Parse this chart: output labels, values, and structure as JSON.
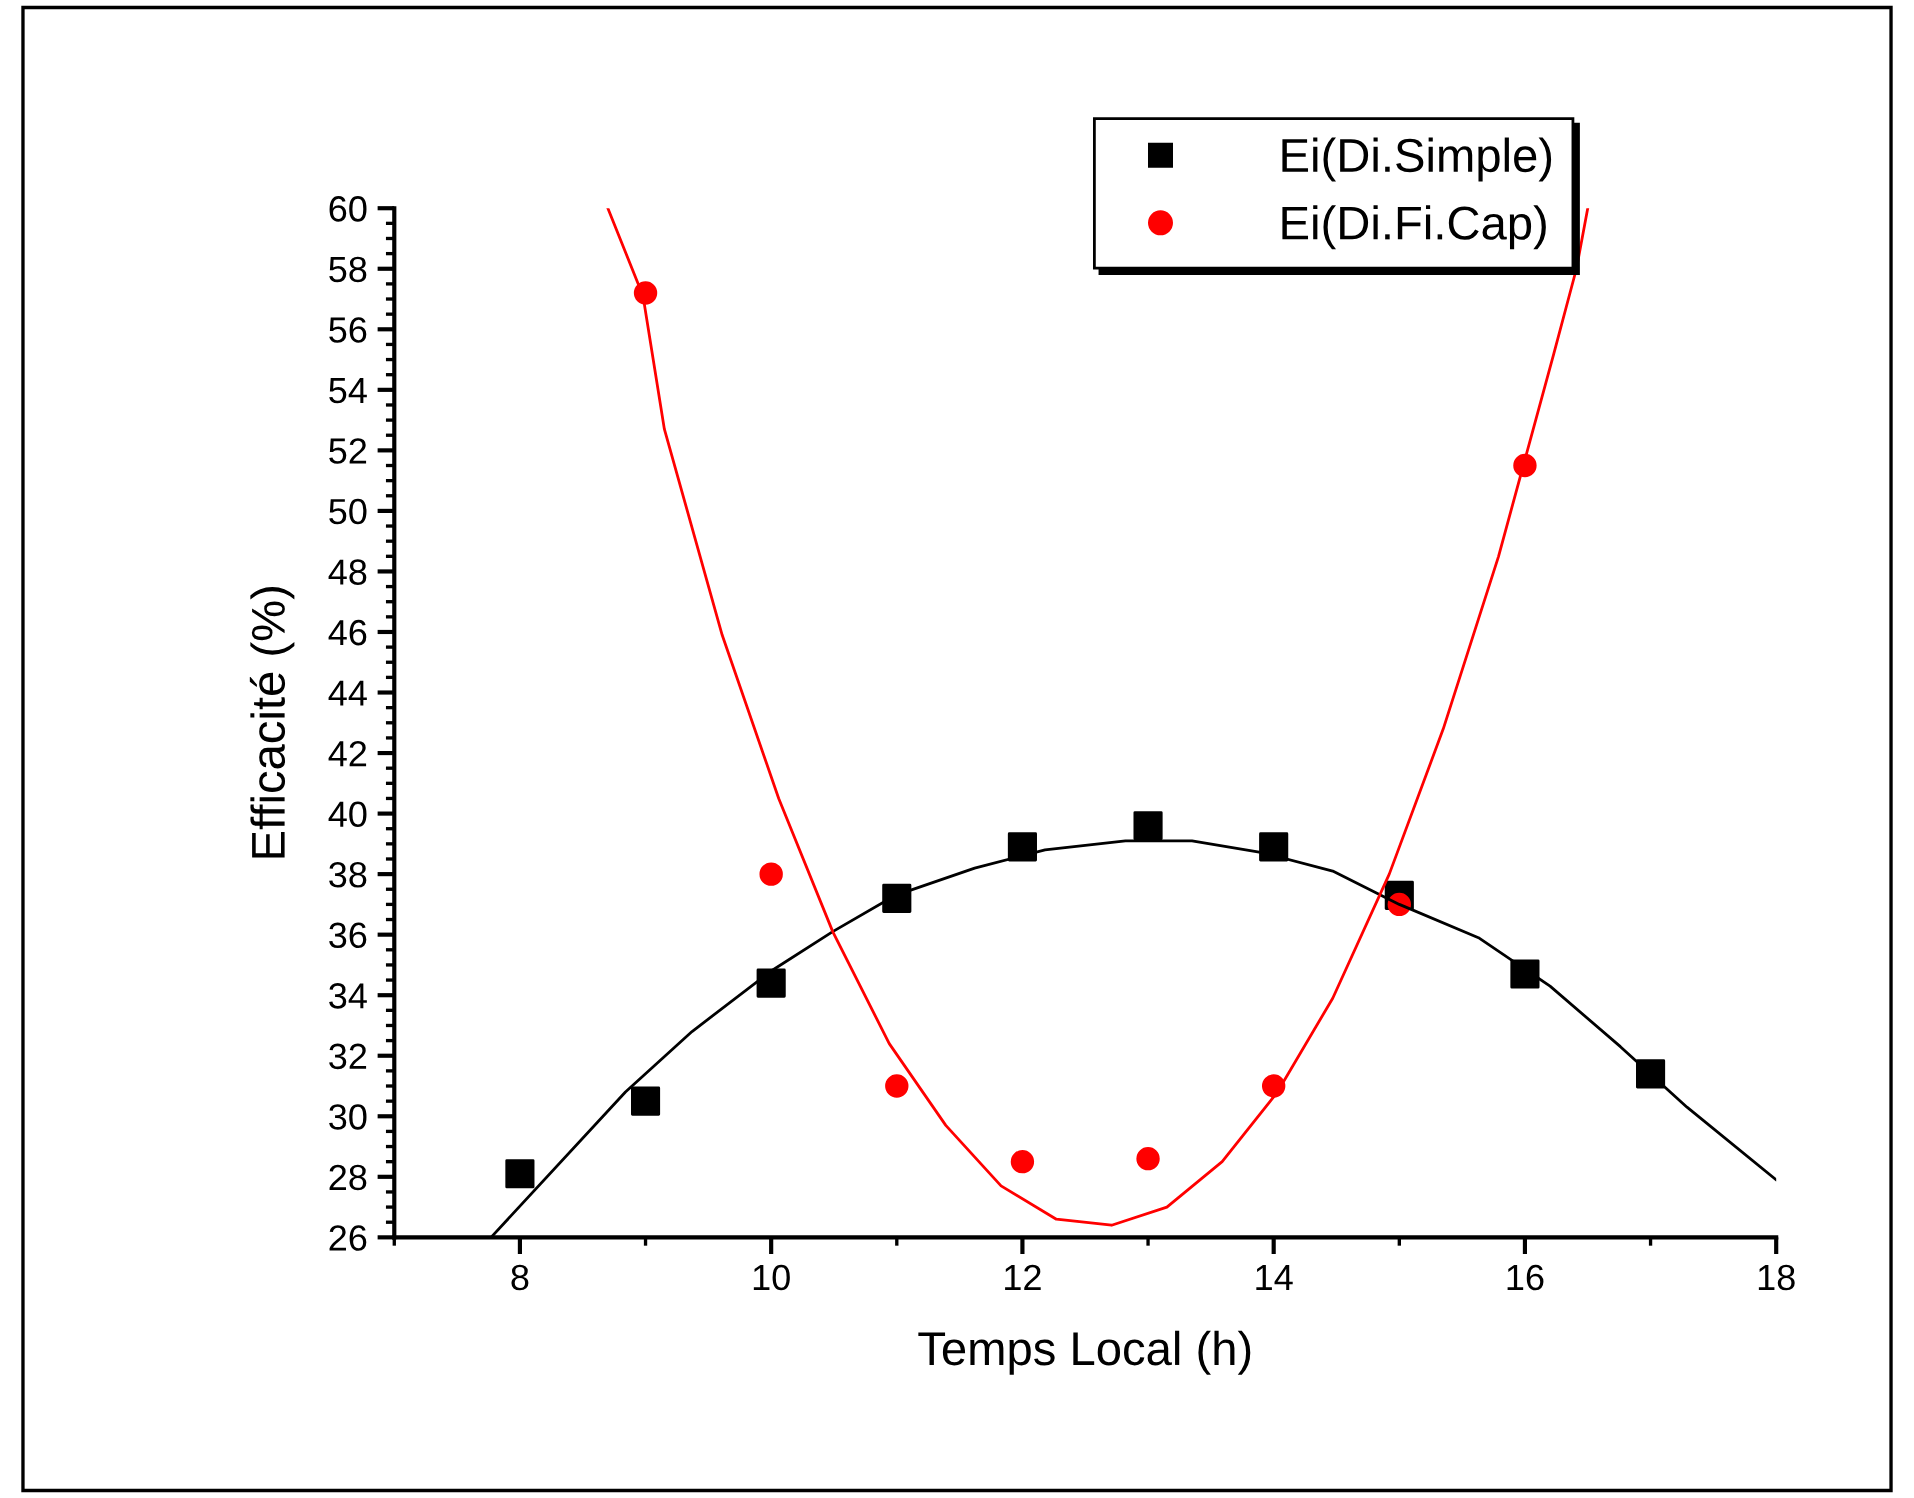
{
  "chart_data": {
    "type": "scatter",
    "xlabel": "Temps Local (h)",
    "ylabel": "Efficacité (%)",
    "xlim": [
      7,
      18
    ],
    "xticks": [
      8,
      10,
      12,
      14,
      16,
      18
    ],
    "ylim": [
      26,
      60
    ],
    "yticks": [
      26,
      28,
      30,
      32,
      34,
      36,
      38,
      40,
      42,
      44,
      46,
      48,
      50,
      52,
      54,
      56,
      58,
      60
    ],
    "grid": false,
    "legend": "top right",
    "series": [
      {
        "name": "Ei(Di.Simple)",
        "color": "#000000",
        "marker": "square",
        "x": [
          8,
          9,
          10,
          11,
          12,
          13,
          14,
          15,
          16,
          17
        ],
        "values": [
          28.1,
          30.5,
          34.4,
          37.2,
          38.9,
          39.6,
          38.9,
          37.3,
          34.7,
          31.4
        ]
      },
      {
        "name": "Ei(Di.Fi.Cap)",
        "color": "#ff0000",
        "marker": "circle",
        "x": [
          9,
          10,
          11,
          12,
          13,
          14,
          15,
          16
        ],
        "values": [
          57.2,
          38.0,
          31.0,
          28.5,
          28.6,
          31.0,
          37.0,
          51.5
        ]
      },
      {
        "type": "line",
        "color": "#000000",
        "marker": "none",
        "line_style": "solid",
        "x": [
          7.77,
          8.84,
          9.37,
          10.0,
          10.49,
          10.99,
          11.62,
          12.18,
          12.82,
          13.35,
          13.92,
          14.47,
          15.0,
          15.63,
          16.2,
          16.76,
          17.29,
          18.0
        ],
        "values": [
          26.0,
          30.8,
          32.8,
          34.8,
          36.1,
          37.3,
          38.2,
          38.8,
          39.1,
          39.1,
          38.7,
          38.1,
          37.0,
          35.9,
          34.3,
          32.3,
          30.3,
          27.9
        ]
      },
      {
        "type": "line",
        "color": "#ff0000",
        "marker": "none",
        "line_style": "solid",
        "x": [
          8.7,
          8.98,
          9.15,
          9.61,
          10.06,
          10.49,
          10.94,
          11.39,
          11.83,
          12.27,
          12.71,
          13.15,
          13.59,
          14.03,
          14.47,
          14.92,
          15.35,
          15.79,
          16.23,
          16.41,
          16.5
        ],
        "values": [
          60.0,
          57.1,
          52.7,
          45.9,
          40.5,
          36.1,
          32.4,
          29.7,
          27.7,
          26.6,
          26.4,
          27.0,
          28.5,
          30.8,
          33.9,
          38.0,
          42.8,
          48.5,
          55.2,
          58.0,
          60.0
        ]
      }
    ]
  }
}
